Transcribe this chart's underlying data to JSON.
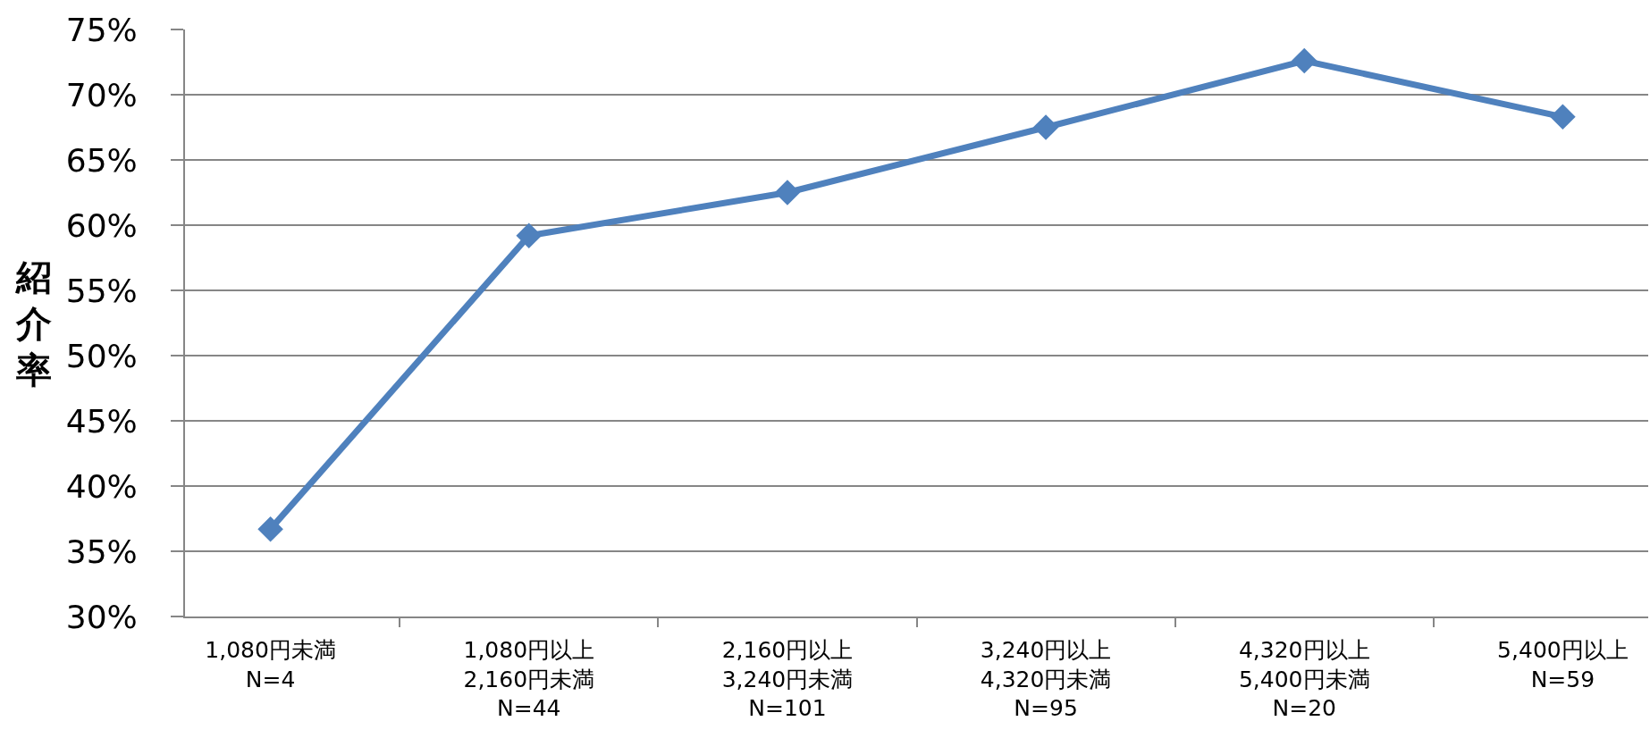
{
  "chart_data": {
    "type": "line",
    "ylabel": "紹介率",
    "categories": [
      "1,080円未満\nN=4",
      "1,080円以上\n2,160円未満\nN=44",
      "2,160円以上\n3,240円未満\nN=101",
      "3,240円以上\n4,320円未満\nN=95",
      "4,320円以上\n5,400円未満\nN=20",
      "5,400円以上\nN=59"
    ],
    "series": [
      {
        "color": "#4f81bd",
        "values": [
          36.7,
          59.2,
          62.5,
          67.5,
          72.6,
          68.3
        ]
      }
    ],
    "ylim": [
      30,
      75
    ],
    "yticks": [
      {
        "value": 30,
        "label": "30%"
      },
      {
        "value": 35,
        "label": "35%"
      },
      {
        "value": 40,
        "label": "40%"
      },
      {
        "value": 45,
        "label": "45%"
      },
      {
        "value": 50,
        "label": "50%"
      },
      {
        "value": 55,
        "label": "55%"
      },
      {
        "value": 60,
        "label": "60%"
      },
      {
        "value": 65,
        "label": "65%"
      },
      {
        "value": 70,
        "label": "70%"
      },
      {
        "value": 75,
        "label": "75%"
      }
    ],
    "grid": "y",
    "marker": "diamond",
    "line_style": "solid"
  }
}
